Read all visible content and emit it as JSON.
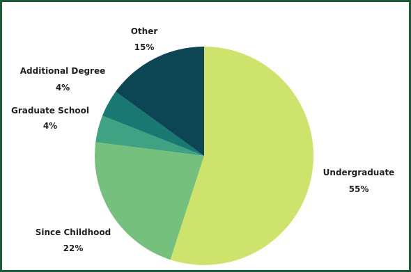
{
  "chart_data": {
    "type": "pie",
    "categories": [
      "Undergraduate",
      "Since Childhood",
      "Graduate School",
      "Additional Degree",
      "Other"
    ],
    "values": [
      55,
      22,
      4,
      4,
      15
    ],
    "value_labels": [
      "55%",
      "22%",
      "4%",
      "4%",
      "15%"
    ],
    "colors": [
      "#cde36b",
      "#76c07d",
      "#3fa383",
      "#1a7872",
      "#0c4554"
    ],
    "start_angle": "12 o'clock",
    "direction": "clockwise",
    "legend": "none",
    "labels_position": "outside"
  }
}
